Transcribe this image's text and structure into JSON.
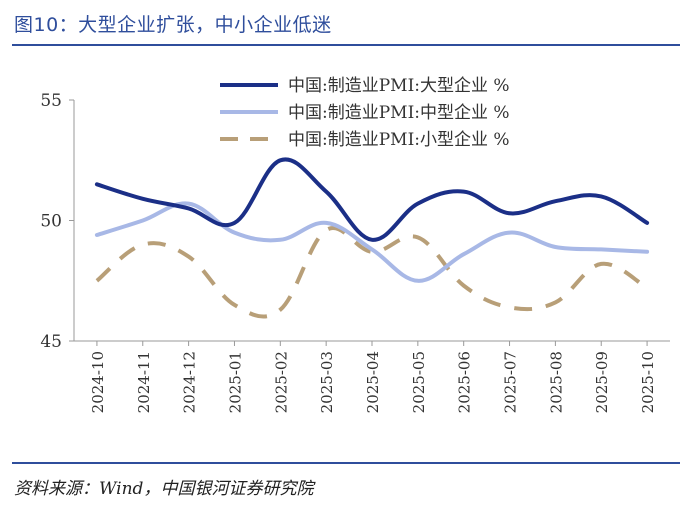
{
  "header": {
    "title": "图10：大型企业扩张，中小企业低迷"
  },
  "footer": {
    "source": "资料来源：Wind，中国银河证券研究院"
  },
  "chart_data": {
    "type": "line",
    "title": "",
    "xlabel": "",
    "ylabel": "",
    "ylim": [
      45,
      55
    ],
    "yticks": [
      45,
      50,
      55
    ],
    "grid": false,
    "legend_position": "top",
    "categories": [
      "2024-10",
      "2024-11",
      "2024-12",
      "2025-01",
      "2025-02",
      "2025-03",
      "2025-04",
      "2025-05",
      "2025-06",
      "2025-07",
      "2025-08",
      "2025-09",
      "2025-10"
    ],
    "series": [
      {
        "name": "中国:制造业PMI:大型企业 %",
        "color": "#1b2f87",
        "dash": "solid",
        "values": [
          51.5,
          50.9,
          50.5,
          49.9,
          52.5,
          51.2,
          49.2,
          50.7,
          51.2,
          50.3,
          50.8,
          51.0,
          49.9
        ]
      },
      {
        "name": "中国:制造业PMI:中型企业 %",
        "color": "#a8b8e6",
        "dash": "solid",
        "values": [
          49.4,
          50.0,
          50.7,
          49.5,
          49.2,
          49.9,
          48.8,
          47.5,
          48.6,
          49.5,
          48.9,
          48.8,
          48.7
        ]
      },
      {
        "name": "中国:制造业PMI:小型企业 %",
        "color": "#b89f78",
        "dash": "dashed",
        "values": [
          47.5,
          49.0,
          48.5,
          46.5,
          46.3,
          49.6,
          48.7,
          49.3,
          47.3,
          46.4,
          46.6,
          48.2,
          47.2
        ]
      }
    ]
  }
}
